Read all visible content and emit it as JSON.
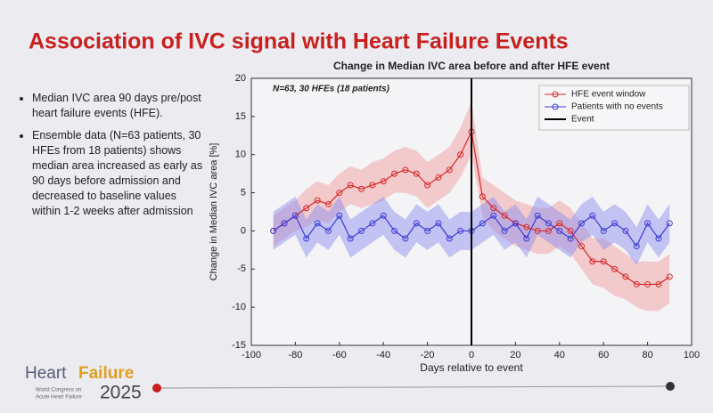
{
  "slide_title": "Association of IVC signal with Heart Failure Events",
  "bullets": [
    "Median IVC area 90 days pre/post heart failure events (HFE).",
    "Ensemble data (N=63 patients, 30 HFEs from 18 patients) shows median area increased as early as 90 days before admission and decreased to baseline values within 1-2 weeks after admission"
  ],
  "logo": {
    "word1": "Heart",
    "word2": "Failure",
    "year": "2025",
    "line1": "World Congress on",
    "line2": "Acute Heart Failure"
  },
  "chart_data": {
    "type": "line",
    "title": "Change in Median IVC area before and after HFE event",
    "annotation": "N=63, 30 HFEs (18 patients)",
    "xlabel": "Days relative to event",
    "ylabel": "Change in Median IVC area [%]",
    "xlim": [
      -100,
      100
    ],
    "xticks": [
      -100,
      -80,
      -60,
      -40,
      -20,
      0,
      20,
      40,
      60,
      80,
      100
    ],
    "ylim": [
      -15,
      20
    ],
    "yticks": [
      -15,
      -10,
      -5,
      0,
      5,
      10,
      15,
      20
    ],
    "legend": "upper right",
    "x": [
      -90,
      -85,
      -80,
      -75,
      -70,
      -65,
      -60,
      -55,
      -50,
      -45,
      -40,
      -35,
      -30,
      -25,
      -20,
      -15,
      -10,
      -5,
      0,
      5,
      10,
      15,
      20,
      25,
      30,
      35,
      40,
      45,
      50,
      55,
      60,
      65,
      70,
      75,
      80,
      85,
      90
    ],
    "series": [
      {
        "name": "HFE event window",
        "color": "#d62728",
        "fill": "#f2a0a0",
        "values": [
          0,
          1,
          2,
          3,
          4,
          3.5,
          5,
          6,
          5.5,
          6,
          6.5,
          7.5,
          8,
          7.5,
          6,
          7,
          8,
          10,
          13,
          4.5,
          3,
          2,
          1,
          0.5,
          0,
          0,
          1,
          0,
          -2,
          -4,
          -4,
          -5,
          -6,
          -7,
          -7,
          -7,
          -6
        ],
        "lower": [
          -2,
          -1,
          0,
          0.5,
          1.5,
          1,
          2.5,
          3.5,
          3,
          3.5,
          4,
          5,
          5,
          4.5,
          3,
          4,
          5,
          7,
          10,
          2,
          0,
          -1,
          -2,
          -2.5,
          -3,
          -3,
          -2,
          -3,
          -5,
          -7,
          -7.5,
          -8.5,
          -9,
          -10,
          -10.5,
          -10.5,
          -9.5
        ],
        "upper": [
          2,
          3,
          4,
          5.5,
          6.5,
          6,
          7.5,
          8.5,
          8,
          9,
          9.5,
          10.5,
          11,
          10.5,
          9,
          10,
          11,
          13.5,
          17,
          7,
          6,
          5,
          4,
          3.5,
          3,
          3,
          4,
          3,
          1,
          -1,
          -1,
          -2,
          -3,
          -4,
          -4,
          -4,
          -3
        ]
      },
      {
        "name": "Patients with no events",
        "color": "#3b3bd6",
        "fill": "#8f8ff0",
        "values": [
          0,
          1,
          2,
          -1,
          1,
          0,
          2,
          -1,
          0,
          1,
          2,
          0,
          -1,
          1,
          0,
          1,
          -1,
          0,
          0,
          1,
          2,
          0,
          1,
          -1,
          2,
          1,
          0,
          -1,
          1,
          2,
          0,
          1,
          0,
          -2,
          1,
          -1,
          1
        ],
        "lower": [
          -2.5,
          -1.5,
          -0.5,
          -3.5,
          -1.5,
          -2.5,
          -0.5,
          -3.5,
          -2.5,
          -1.5,
          -0.5,
          -2.5,
          -3.5,
          -1.5,
          -2.5,
          -1.5,
          -3.5,
          -2.5,
          -2.5,
          -1.5,
          -0.5,
          -2.5,
          -1.5,
          -3.5,
          -0.5,
          -1.5,
          -2.5,
          -3.5,
          -1.5,
          -0.5,
          -2.5,
          -1.5,
          -2.5,
          -4.5,
          -1.5,
          -3.5,
          -1.5
        ],
        "upper": [
          2.5,
          3.5,
          4.5,
          1.5,
          3.5,
          2.5,
          4.5,
          1.5,
          2.5,
          3.5,
          4.5,
          2.5,
          1.5,
          3.5,
          2.5,
          3.5,
          1.5,
          2.5,
          2.5,
          3.5,
          4.5,
          2.5,
          3.5,
          1.5,
          4.5,
          3.5,
          2.5,
          1.5,
          3.5,
          4.5,
          2.5,
          3.5,
          2.5,
          0.5,
          3.5,
          1.5,
          3.5
        ]
      }
    ],
    "event": {
      "name": "Event",
      "x": 0,
      "color": "#000000"
    }
  }
}
